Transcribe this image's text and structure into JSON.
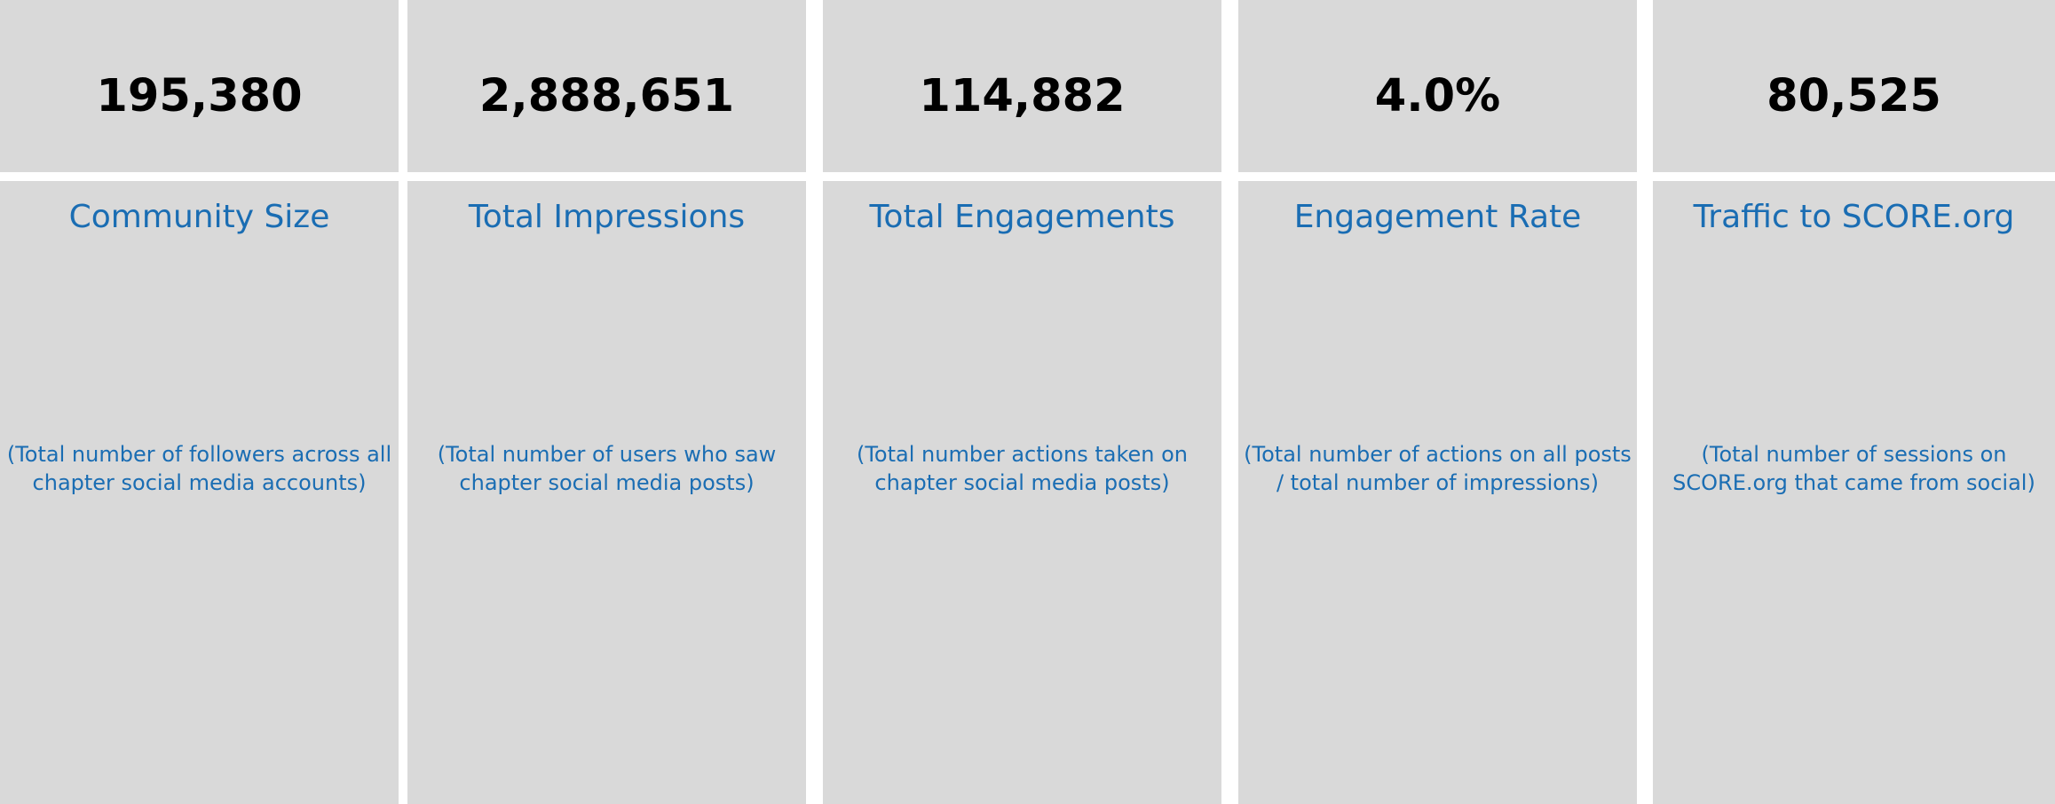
{
  "metrics": [
    {
      "value": "195,380",
      "label": "Community Size",
      "description": "(Total number of followers across all chapter social media accounts)"
    },
    {
      "value": "2,888,651",
      "label": "Total Impressions",
      "description": "(Total number of users who saw chapter social media posts)"
    },
    {
      "value": "114,882",
      "label": "Total Engagements",
      "description": "(Total number actions taken on chapter social media posts)"
    },
    {
      "value": "4.0%",
      "label": "Engagement Rate",
      "description": "(Total number of actions on all posts / total number of impressions)"
    },
    {
      "value": "80,525",
      "label": "Traffic to SCORE.org",
      "description": "(Total number of sessions on SCORE.org that came from social)"
    }
  ],
  "colors": {
    "panel_background": "#d9d9d9",
    "value_text": "#000000",
    "label_text": "#1a6db3",
    "gutter": "#ffffff"
  }
}
